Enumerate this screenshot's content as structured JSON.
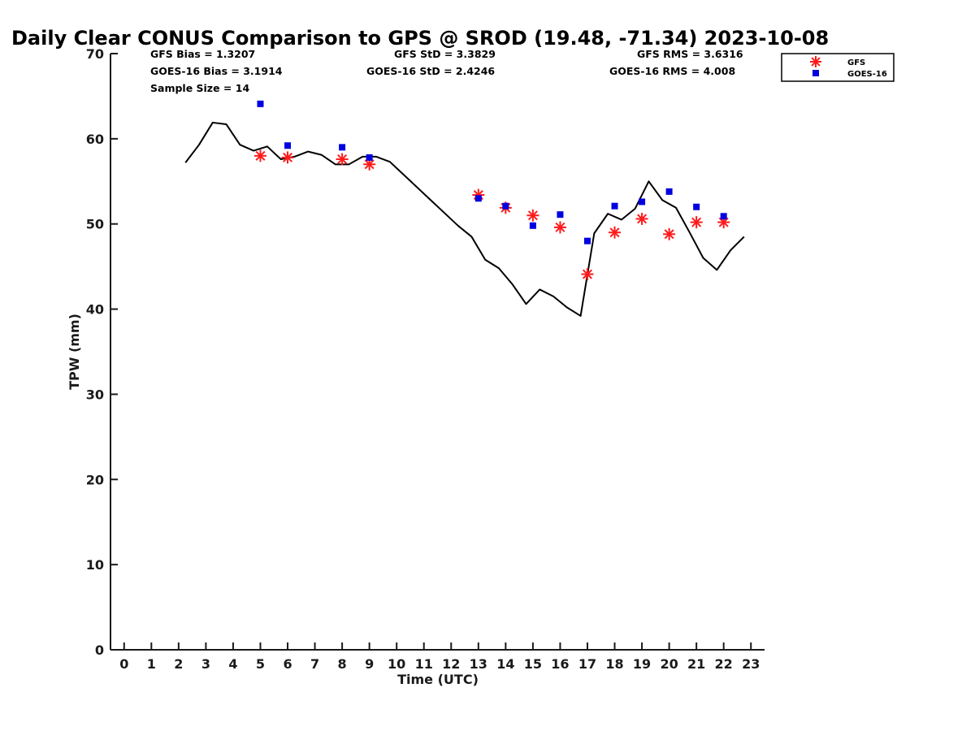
{
  "chart_data": {
    "type": "scatter",
    "title": "Daily Clear CONUS Comparison to GPS @ SROD (19.48, -71.34) 2023-10-08",
    "xlabel": "Time (UTC)",
    "ylabel": "TPW (mm)",
    "xlim": [
      -0.5,
      23.5
    ],
    "ylim": [
      0,
      70
    ],
    "xticks": [
      0,
      1,
      2,
      3,
      4,
      5,
      6,
      7,
      8,
      9,
      10,
      11,
      12,
      13,
      14,
      15,
      16,
      17,
      18,
      19,
      20,
      21,
      22,
      23
    ],
    "yticks": [
      0,
      10,
      20,
      30,
      40,
      50,
      60,
      70
    ],
    "grid": false,
    "legend_position": "top-right",
    "stats": {
      "gfs_bias": "GFS Bias = 1.3207",
      "goes_bias": "GOES-16 Bias = 3.1914",
      "sample_size": "Sample Size = 14",
      "gfs_std": "GFS StD = 3.3829",
      "goes_std": "GOES-16 StD = 2.4246",
      "gfs_rms": "GFS RMS = 3.6316",
      "goes_rms": "GOES-16 RMS = 4.008"
    },
    "series": [
      {
        "name": "GPS",
        "type": "line",
        "color": "#000000",
        "x": [
          2.25,
          2.75,
          3.25,
          3.75,
          4.25,
          4.75,
          5.25,
          5.75,
          6.25,
          6.75,
          7.25,
          7.75,
          8.25,
          8.75,
          9.25,
          9.75,
          10.25,
          10.75,
          11.25,
          11.75,
          12.25,
          12.75,
          13.25,
          13.75,
          14.25,
          14.75,
          15.25,
          15.75,
          16.25,
          16.75,
          17.25,
          17.75,
          18.25,
          18.75,
          19.25,
          19.75,
          20.25,
          20.75,
          21.25,
          21.75,
          22.25,
          22.75
        ],
        "y": [
          57.2,
          59.3,
          61.9,
          61.7,
          59.3,
          58.6,
          59.1,
          57.6,
          57.9,
          58.5,
          58.1,
          57.0,
          57.0,
          57.9,
          57.9,
          57.3,
          55.8,
          54.3,
          52.8,
          51.3,
          49.8,
          48.5,
          45.8,
          44.8,
          42.9,
          40.6,
          42.3,
          41.5,
          40.2,
          39.2,
          48.9,
          51.2,
          50.5,
          51.8,
          55.0,
          52.8,
          51.9,
          49.0,
          46.0,
          44.6,
          46.9,
          48.5
        ]
      },
      {
        "name": "GFS",
        "type": "scatter",
        "marker": "asterisk",
        "color": "#ff1a1a",
        "x": [
          5,
          6,
          8,
          9,
          13,
          14,
          15,
          16,
          17,
          18,
          19,
          20,
          21,
          22
        ],
        "y": [
          58.0,
          57.8,
          57.6,
          57.0,
          53.4,
          51.9,
          51.0,
          49.6,
          44.1,
          49.0,
          50.6,
          48.8,
          50.2,
          50.2
        ]
      },
      {
        "name": "GOES-16",
        "type": "scatter",
        "marker": "square",
        "color": "#0000e0",
        "x": [
          5,
          6,
          8,
          9,
          13,
          14,
          15,
          16,
          17,
          18,
          19,
          20,
          21,
          22
        ],
        "y": [
          64.1,
          59.2,
          59.0,
          57.8,
          53.0,
          52.1,
          49.8,
          51.1,
          48.0,
          52.1,
          52.6,
          53.8,
          52.0,
          50.9
        ]
      }
    ],
    "legend": [
      {
        "label": "GFS",
        "marker": "asterisk",
        "color": "#ff1a1a"
      },
      {
        "label": "GOES-16",
        "marker": "square",
        "color": "#0000e0"
      }
    ]
  }
}
